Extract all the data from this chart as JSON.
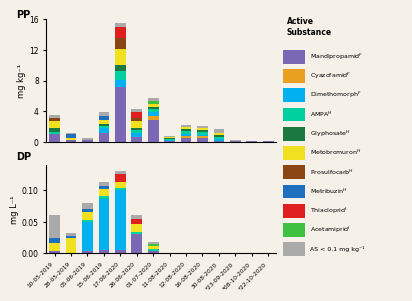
{
  "dates": [
    "10-05-2019",
    "28-05-2019",
    "05-06-2019",
    "15-06-2019",
    "17-06-2020",
    "26-06-2020",
    "01-07-2020",
    "11-08-2020",
    "12-08-2020",
    "16-08-2020",
    "30-08-2020",
    "*23-09-2020",
    "*08-10-2020",
    "*22-10-2020"
  ],
  "substances": [
    "Mandipropamid",
    "Cyazofamid",
    "Dimethomorph",
    "AMPA",
    "Glyphosate",
    "Metobromuron",
    "Prosulfocarb",
    "Metribuzin",
    "Thiacloprid",
    "Acetamiprid",
    "AS < 0.1 mg kg⁻¹"
  ],
  "colors": [
    "#7b68b5",
    "#e8a020",
    "#00b0f0",
    "#00d0a0",
    "#1a7840",
    "#f0e020",
    "#8b4513",
    "#1f6fbf",
    "#e02020",
    "#40c040",
    "#aaaaaa"
  ],
  "superscripts": [
    "F",
    "F",
    "F",
    "H",
    "H",
    "H",
    "H",
    "H",
    "I",
    "I",
    ""
  ],
  "pp_data": [
    [
      1.0,
      0.0,
      0.0,
      0.35,
      0.45,
      0.9,
      0.45,
      0.0,
      0.0,
      0.0,
      0.35
    ],
    [
      0.2,
      0.0,
      0.0,
      0.0,
      0.0,
      0.3,
      0.0,
      0.55,
      0.0,
      0.0,
      0.1
    ],
    [
      0.3,
      0.0,
      0.0,
      0.0,
      0.0,
      0.0,
      0.0,
      0.0,
      0.0,
      0.0,
      0.2
    ],
    [
      1.2,
      0.0,
      0.6,
      0.3,
      0.2,
      0.55,
      0.0,
      0.5,
      0.0,
      0.0,
      0.55
    ],
    [
      7.2,
      0.0,
      0.9,
      1.1,
      0.85,
      2.1,
      1.4,
      0.0,
      1.45,
      0.0,
      0.5
    ],
    [
      0.6,
      0.0,
      0.55,
      0.4,
      0.25,
      0.9,
      0.45,
      0.0,
      0.75,
      0.0,
      0.45
    ],
    [
      2.9,
      0.5,
      0.5,
      0.4,
      0.2,
      0.5,
      0.0,
      0.0,
      0.0,
      0.3,
      0.4
    ],
    [
      0.1,
      0.0,
      0.1,
      0.2,
      0.1,
      0.1,
      0.0,
      0.0,
      0.0,
      0.0,
      0.2
    ],
    [
      0.5,
      0.2,
      0.3,
      0.45,
      0.2,
      0.3,
      0.0,
      0.0,
      0.0,
      0.0,
      0.3
    ],
    [
      0.5,
      0.2,
      0.2,
      0.35,
      0.3,
      0.3,
      0.0,
      0.0,
      0.0,
      0.0,
      0.2
    ],
    [
      0.05,
      0.0,
      0.3,
      0.3,
      0.2,
      0.35,
      0.0,
      0.0,
      0.0,
      0.0,
      0.5
    ],
    [
      0.15,
      0.0,
      0.0,
      0.0,
      0.0,
      0.0,
      0.0,
      0.0,
      0.0,
      0.0,
      0.1
    ],
    [
      0.05,
      0.0,
      0.0,
      0.0,
      0.0,
      0.0,
      0.0,
      0.0,
      0.0,
      0.0,
      0.1
    ],
    [
      0.05,
      0.0,
      0.0,
      0.0,
      0.0,
      0.0,
      0.0,
      0.0,
      0.0,
      0.0,
      0.1
    ]
  ],
  "dp_data": [
    [
      0.004,
      0.0,
      0.0,
      0.0,
      0.0,
      0.013,
      0.0,
      0.008,
      0.0,
      0.0,
      0.035
    ],
    [
      0.0,
      0.0,
      0.0,
      0.0,
      0.0,
      0.025,
      0.0,
      0.003,
      0.0,
      0.0,
      0.005
    ],
    [
      0.004,
      0.0,
      0.045,
      0.004,
      0.0,
      0.012,
      0.0,
      0.005,
      0.0,
      0.0,
      0.01
    ],
    [
      0.006,
      0.0,
      0.08,
      0.005,
      0.0,
      0.01,
      0.0,
      0.006,
      0.0,
      0.0,
      0.005
    ],
    [
      0.005,
      0.0,
      0.095,
      0.003,
      0.0,
      0.01,
      0.0,
      0.0,
      0.012,
      0.0,
      0.005
    ],
    [
      0.03,
      0.0,
      0.0,
      0.004,
      0.0,
      0.012,
      0.0,
      0.0,
      0.009,
      0.0,
      0.005
    ],
    [
      0.004,
      0.0,
      0.0,
      0.003,
      0.0,
      0.005,
      0.0,
      0.0,
      0.0,
      0.003,
      0.003
    ],
    [
      0.0,
      0.0,
      0.0,
      0.0,
      0.0,
      0.0,
      0.0,
      0.0,
      0.0,
      0.0,
      0.0
    ],
    [
      0.0,
      0.0,
      0.0,
      0.0,
      0.0,
      0.0,
      0.0,
      0.0,
      0.0,
      0.0,
      0.0
    ],
    [
      0.0,
      0.0,
      0.0,
      0.0,
      0.0,
      0.0,
      0.0,
      0.0,
      0.0,
      0.0,
      0.0
    ],
    [
      0.0,
      0.0,
      0.0,
      0.0,
      0.0,
      0.0,
      0.0,
      0.0,
      0.0,
      0.0,
      0.0
    ],
    [
      0.0,
      0.0,
      0.0,
      0.0,
      0.0,
      0.0,
      0.0,
      0.0,
      0.0,
      0.0,
      0.0
    ],
    [
      0.0,
      0.0,
      0.0,
      0.0,
      0.0,
      0.0,
      0.0,
      0.0,
      0.0,
      0.0,
      0.0
    ],
    [
      0.0,
      0.0,
      0.0,
      0.0,
      0.0,
      0.0,
      0.0,
      0.0,
      0.0,
      0.0,
      0.0
    ]
  ],
  "pp_ylim": [
    0,
    16
  ],
  "dp_ylim": [
    0,
    0.14
  ],
  "pp_yticks": [
    0,
    4,
    8,
    12,
    16
  ],
  "dp_yticks": [
    0.0,
    0.05,
    0.1
  ],
  "pp_ylabel": "mg kg⁻¹",
  "dp_ylabel": "mg L⁻¹",
  "legend_title": "Active\nSubstance",
  "bg_color": "#f5f0e8"
}
